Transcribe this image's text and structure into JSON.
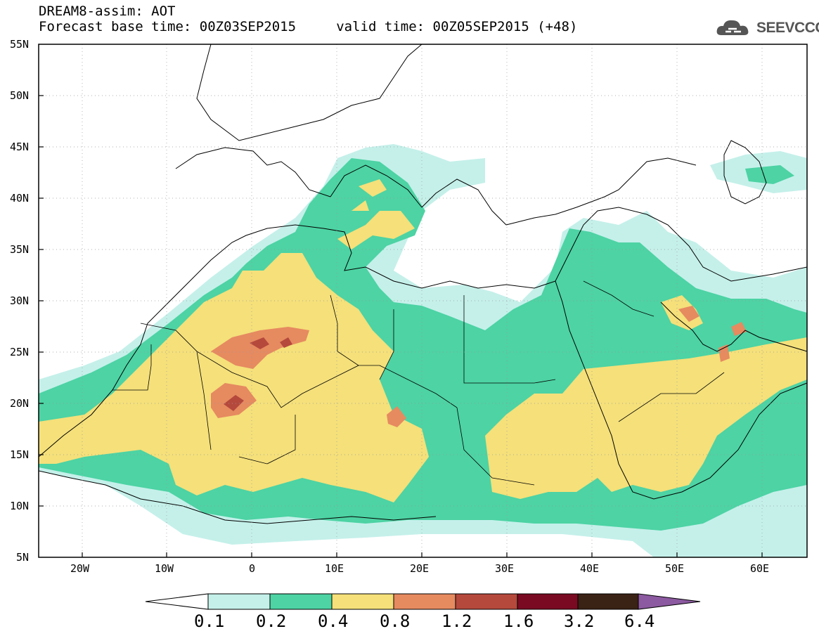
{
  "header": {
    "product_line": "DREAM8-assim: AOT",
    "time_line": "Forecast base time: 00Z03SEP2015     valid time: 00Z05SEP2015 (+48)",
    "logo_text": "SEEVCCC"
  },
  "map": {
    "lat_labels": [
      "55N",
      "50N",
      "45N",
      "40N",
      "35N",
      "30N",
      "25N",
      "20N",
      "15N",
      "10N",
      "5N"
    ],
    "lon_labels": [
      "20W",
      "10W",
      "0",
      "10E",
      "20E",
      "30E",
      "40E",
      "50E",
      "60E"
    ],
    "lat_range": [
      5,
      55
    ],
    "lon_range": [
      -25,
      65
    ]
  },
  "legend": {
    "labels": [
      "0.1",
      "0.2",
      "0.4",
      "0.8",
      "1.2",
      "1.6",
      "3.2",
      "6.4"
    ],
    "colors": [
      "#ffffff",
      "#c5f0ea",
      "#4dd3a4",
      "#f5e07a",
      "#e68a60",
      "#b5493c",
      "#7a0a22",
      "#3a2214",
      "#8c5aa0"
    ]
  }
}
